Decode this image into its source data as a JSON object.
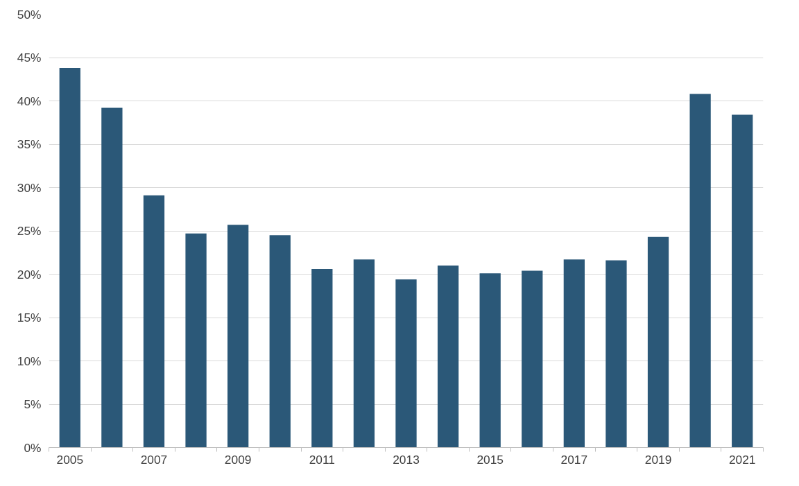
{
  "chart_data": {
    "type": "bar",
    "categories": [
      "2005",
      null,
      "2007",
      null,
      "2009",
      null,
      "2011",
      null,
      "2013",
      null,
      "2015",
      null,
      "2017",
      null,
      "2019",
      null,
      "2021"
    ],
    "values": [
      43.8,
      39.2,
      29.1,
      24.7,
      25.7,
      24.5,
      20.6,
      21.7,
      19.4,
      21.0,
      20.1,
      20.4,
      21.7,
      21.6,
      24.3,
      40.8,
      38.4
    ],
    "color": "#2b5878",
    "ylim": [
      0,
      50
    ],
    "yticks": [
      {
        "value": 0,
        "label": "0%"
      },
      {
        "value": 5,
        "label": "5%"
      },
      {
        "value": 10,
        "label": "10%"
      },
      {
        "value": 15,
        "label": "15%"
      },
      {
        "value": 20,
        "label": "20%"
      },
      {
        "value": 25,
        "label": "25%"
      },
      {
        "value": 30,
        "label": "30%"
      },
      {
        "value": 35,
        "label": "35%"
      },
      {
        "value": 40,
        "label": "40%"
      },
      {
        "value": 45,
        "label": "45%"
      },
      {
        "value": 50,
        "label": "50%"
      }
    ],
    "grid": "y"
  }
}
